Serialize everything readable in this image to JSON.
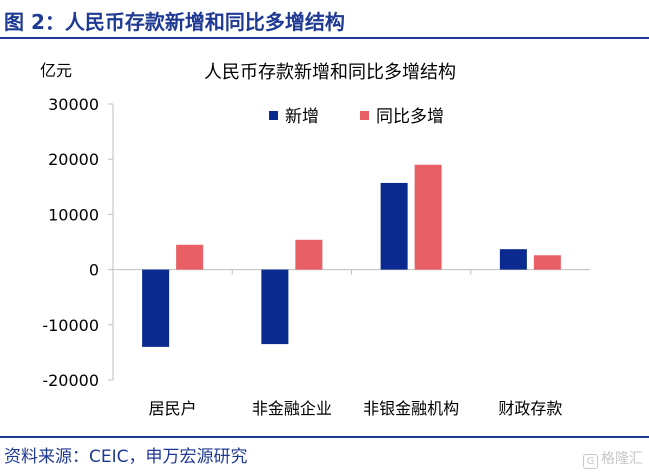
{
  "figure": {
    "title": "图 2：人民币存款新增和同比多增结构",
    "source": "资料来源：CEIC，申万宏源研究",
    "watermark": "格隆汇"
  },
  "colors": {
    "header": "#1f3a93",
    "series_new": "#0a2a8f",
    "series_yoy": "#e86066",
    "axis": "#bfbfbf"
  },
  "chart_data": {
    "type": "bar",
    "title": "人民币存款新增和同比多增结构",
    "unit": "亿元",
    "xlabel": "",
    "ylabel": "亿元",
    "categories": [
      "居民户",
      "非金融企业",
      "非银金融机构",
      "财政存款"
    ],
    "series": [
      {
        "name": "新增",
        "values": [
          -14000,
          -13500,
          15700,
          3700
        ]
      },
      {
        "name": "同比多增",
        "values": [
          4500,
          5400,
          19000,
          2600
        ]
      }
    ],
    "ylim": [
      -20000,
      30000
    ],
    "yticks": [
      "30000",
      "20000",
      "10000",
      "0",
      "-10000",
      "-20000"
    ],
    "ytick_values": [
      30000,
      20000,
      10000,
      0,
      -10000,
      -20000
    ],
    "grid": false,
    "legend_position": "top"
  }
}
